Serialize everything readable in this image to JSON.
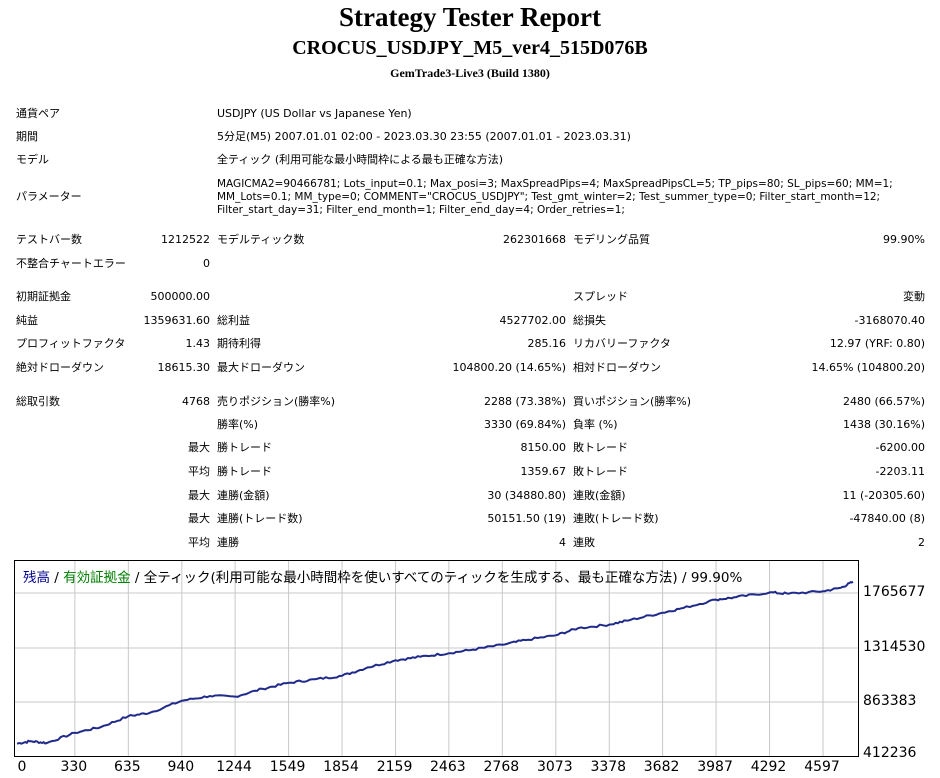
{
  "header": {
    "title": "Strategy Tester Report",
    "subtitle": "CROCUS_USDJPY_M5_ver4_515D076B",
    "server": "GemTrade3-Live3 (Build 1380)"
  },
  "info": {
    "symbol_label": "通貨ペア",
    "symbol_value": "USDJPY (US Dollar vs Japanese Yen)",
    "period_label": "期間",
    "period_value": "5分足(M5) 2007.01.01 02:00 - 2023.03.30 23:55 (2007.01.01 - 2023.03.31)",
    "model_label": "モデル",
    "model_value": "全ティック (利用可能な最小時間枠による最も正確な方法)",
    "params_label": "パラメーター",
    "params_value": "MAGICMA2=90466781; Lots_input=0.1; Max_posi=3; MaxSpreadPips=4; MaxSpreadPipsCL=5; TP_pips=80; SL_pips=60; MM=1; MM_Lots=0.1; MM_type=0; COMMENT=\"CROCUS_USDJPY\"; Test_gmt_winter=2; Test_summer_type=0; Filter_start_month=12; Filter_start_day=31; Filter_end_month=1; Filter_end_day=4; Order_retries=1;"
  },
  "stats": {
    "bars_label": "テストバー数",
    "bars_value": "1212522",
    "ticks_label": "モデルティック数",
    "ticks_value": "262301668",
    "quality_label": "モデリング品質",
    "quality_value": "99.90%",
    "mismatch_label": "不整合チャートエラー",
    "mismatch_value": "0",
    "deposit_label": "初期証拠金",
    "deposit_value": "500000.00",
    "spread_label": "スプレッド",
    "spread_value": "変動",
    "net_label": "純益",
    "net_value": "1359631.60",
    "gross_profit_label": "総利益",
    "gross_profit_value": "4527702.00",
    "gross_loss_label": "総損失",
    "gross_loss_value": "-3168070.40",
    "pf_label": "プロフィットファクタ",
    "pf_value": "1.43",
    "expected_label": "期待利得",
    "expected_value": "285.16",
    "recovery_label": "リカバリーファクタ",
    "recovery_value": "12.97 (YRF: 0.80)",
    "abs_dd_label": "絶対ドローダウン",
    "abs_dd_value": "18615.30",
    "max_dd_label": "最大ドローダウン",
    "max_dd_value": "104800.20 (14.65%)",
    "rel_dd_label": "相対ドローダウン",
    "rel_dd_value": "14.65% (104800.20)",
    "total_trades_label": "総取引数",
    "total_trades_value": "4768",
    "short_label": "売りポジション(勝率%)",
    "short_value": "2288 (73.38%)",
    "long_label": "買いポジション(勝率%)",
    "long_value": "2480 (66.57%)",
    "win_rate_label": "勝率(%)",
    "win_rate_value": "3330 (69.84%)",
    "loss_rate_label": "負率 (%)",
    "loss_rate_value": "1438 (30.16%)",
    "max_prefix": "最大",
    "avg_prefix": "平均",
    "max_win_label": "勝トレード",
    "max_win_value": "8150.00",
    "max_loss_label": "敗トレード",
    "max_loss_value": "-6200.00",
    "avg_win_label": "勝トレード",
    "avg_win_value": "1359.67",
    "avg_loss_label": "敗トレード",
    "avg_loss_value": "-2203.11",
    "cons_wins_amt_label": "連勝(金額)",
    "cons_wins_amt_value": "30 (34880.80)",
    "cons_losses_amt_label": "連敗(金額)",
    "cons_losses_amt_value": "11 (-20305.60)",
    "cons_profit_label": "連勝(トレード数)",
    "cons_profit_value": "50151.50 (19)",
    "cons_loss_label": "連敗(トレード数)",
    "cons_loss_value": "-47840.00 (8)",
    "avg_cons_wins_label": "連勝",
    "avg_cons_wins_value": "4",
    "avg_cons_losses_label": "連敗",
    "avg_cons_losses_value": "2"
  },
  "legend": {
    "balance": "残高",
    "sep1": " / ",
    "equity": "有効証拠金",
    "rest": " / 全ティック(利用可能な最小時間枠を使いすべてのティックを生成する、最も正確な方法) / 99.90%",
    "balance_color": "#00008B",
    "equity_color": "#008000"
  },
  "chart_data": {
    "type": "line",
    "ylim": [
      412236,
      1900000
    ],
    "xlim": [
      0,
      4768
    ],
    "y_ticks": [
      "1765677",
      "1314530",
      "863383",
      "412236"
    ],
    "x_ticks": [
      "0",
      "330",
      "635",
      "940",
      "1244",
      "1549",
      "1854",
      "2159",
      "2463",
      "2768",
      "3073",
      "3378",
      "3682",
      "3987",
      "4292",
      "4597"
    ],
    "series": [
      {
        "line_color": "#1F2A8A",
        "x": [
          0,
          80,
          170,
          330,
          480,
          635,
          760,
          940,
          1100,
          1244,
          1400,
          1549,
          1700,
          1854,
          2000,
          2159,
          2300,
          2463,
          2600,
          2768,
          2900,
          3073,
          3200,
          3378,
          3500,
          3682,
          3800,
          3987,
          4100,
          4292,
          4400,
          4597,
          4700,
          4768
        ],
        "y": [
          500000,
          520000,
          505000,
          590000,
          640000,
          730000,
          760000,
          860000,
          900000,
          895000,
          960000,
          1010000,
          1040000,
          1070000,
          1140000,
          1200000,
          1230000,
          1260000,
          1290000,
          1330000,
          1370000,
          1410000,
          1470000,
          1500000,
          1540000,
          1600000,
          1640000,
          1710000,
          1730000,
          1770000,
          1760000,
          1780000,
          1810000,
          1859632
        ]
      }
    ]
  }
}
